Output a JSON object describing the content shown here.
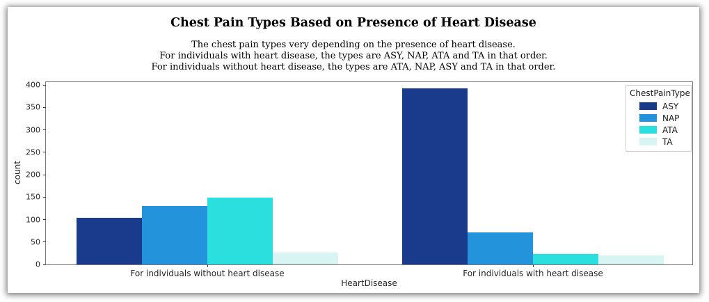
{
  "chart_data": {
    "type": "bar",
    "title": "Chest Pain Types Based on Presence of Heart Disease",
    "subtitle_lines": [
      "The chest pain types very depending on the presence of heart disease.",
      "For individuals with heart disease, the types are ASY, NAP, ATA and TA in that order.",
      "For individuals without heart disease, the types are ATA, NAP, ASY and TA in that order."
    ],
    "xlabel": "HeartDisease",
    "ylabel": "count",
    "categories": [
      "For individuals without heart disease",
      "For individuals with heart disease"
    ],
    "series": [
      {
        "name": "ASY",
        "color": "#1a3a8c",
        "values": [
          104,
          392
        ]
      },
      {
        "name": "NAP",
        "color": "#2394dc",
        "values": [
          131,
          72
        ]
      },
      {
        "name": "ATA",
        "color": "#2adfdd",
        "values": [
          149,
          24
        ]
      },
      {
        "name": "TA",
        "color": "#d9f5f3",
        "values": [
          26,
          20
        ]
      }
    ],
    "ylim": [
      0,
      400
    ],
    "yticks": [
      0,
      50,
      100,
      150,
      200,
      250,
      300,
      350,
      400
    ],
    "legend_title": "ChestPainType",
    "legend_position": "upper right",
    "grid": false
  }
}
